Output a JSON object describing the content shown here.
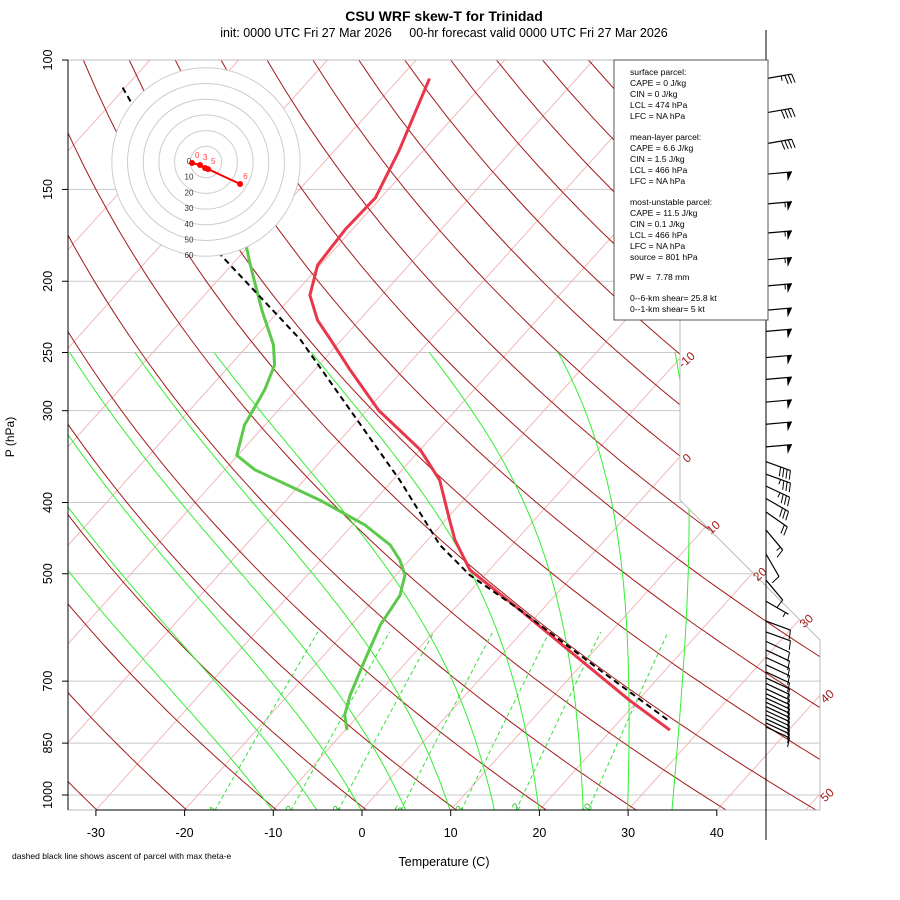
{
  "chart_data": {
    "type": "line",
    "title": "CSU WRF skew-T for Trinidad",
    "subtitle": "init: 0000 UTC Fri 27 Mar 2026     00-hr forecast valid 0000 UTC Fri 27 Mar 2026",
    "xlabel": "Temperature (C)",
    "ylabel": "P (hPa)",
    "footnote": "dashed black line shows ascent of parcel with max theta-e",
    "ylim": [
      1050,
      100
    ],
    "xlim_at_bottom": [
      -33,
      52
    ],
    "pressure_ticks": [
      "100",
      "150",
      "200",
      "250",
      "300",
      "400",
      "500",
      "700",
      "850",
      "1000"
    ],
    "temperature_ticks": [
      "-30",
      "-20",
      "-10",
      "0",
      "10",
      "20",
      "30",
      "40"
    ],
    "isotherm_labels": [
      "-10",
      "0",
      "10",
      "20",
      "30",
      "40",
      "50"
    ],
    "mixing_ratio_labels": [
      "1",
      "2",
      "3",
      "5",
      "8",
      "12",
      "20"
    ],
    "colors": {
      "temperature": "#e8364a",
      "dewpoint": "#5cc94a",
      "parcel": "#000000",
      "dry_adiabat": "#a31a1a",
      "isotherm": "#f2b8b8",
      "moist_adiabat": "#33ee33",
      "mixing_ratio": "#33dd33",
      "hodograph": "#ff0000"
    },
    "series": [
      {
        "name": "temperature",
        "p": [
          106,
          133,
          154,
          170,
          190,
          209,
          226,
          240,
          264,
          300,
          339,
          373,
          423,
          450,
          494,
          560,
          655,
          743,
          816
        ],
        "T": [
          -66.6,
          -62.7,
          -60.6,
          -60.8,
          -60.3,
          -58.1,
          -54.7,
          -51.3,
          -46,
          -38.6,
          -30,
          -24.7,
          -19.5,
          -16.9,
          -12.2,
          -2.5,
          9.4,
          19,
          26.6
        ]
      },
      {
        "name": "dewpoint",
        "p": [
          175,
          190,
          219,
          244,
          260,
          281,
          314,
          345,
          361,
          397,
          429,
          457,
          479,
          502,
          535,
          587,
          655,
          731,
          778,
          816
        ],
        "T": [
          -71.2,
          -67.9,
          -62,
          -57.2,
          -55,
          -53.6,
          -52.3,
          -50.1,
          -46.6,
          -36.2,
          -28.6,
          -23.7,
          -21.1,
          -19,
          -17.5,
          -16.7,
          -14.9,
          -13,
          -11.6,
          -9.8
        ]
      },
      {
        "name": "parcel",
        "p": [
          109,
          181,
          240,
          373,
          457,
          502,
          560,
          676,
          793
        ],
        "T": [
          -100.3,
          -73.4,
          -54.7,
          -29.2,
          -18.1,
          -11.7,
          -2.5,
          12.6,
          25.6
        ]
      }
    ],
    "hodograph": {
      "ring_labels": [
        "0",
        "10",
        "20",
        "30",
        "40",
        "50",
        "60"
      ],
      "points_kt": [
        {
          "u": -8.9,
          "v": -0.6,
          "label": "0"
        },
        {
          "u": -3.8,
          "v": -1.9,
          "label": "3"
        },
        {
          "u": -0.6,
          "v": -3.8,
          "label": ""
        },
        {
          "u": 1.3,
          "v": -4.5,
          "label": "5"
        },
        {
          "u": 21.7,
          "v": -14,
          "label": "6"
        }
      ]
    },
    "wind_barbs": [
      {
        "p": 106,
        "dir": 260,
        "spd": 35
      },
      {
        "p": 118,
        "dir": 260,
        "spd": 40
      },
      {
        "p": 130,
        "dir": 260,
        "spd": 40
      },
      {
        "p": 143,
        "dir": 265,
        "spd": 50
      },
      {
        "p": 157,
        "dir": 265,
        "spd": 55
      },
      {
        "p": 172,
        "dir": 265,
        "spd": 55
      },
      {
        "p": 187,
        "dir": 265,
        "spd": 55
      },
      {
        "p": 203,
        "dir": 265,
        "spd": 55
      },
      {
        "p": 219,
        "dir": 265,
        "spd": 50
      },
      {
        "p": 234,
        "dir": 265,
        "spd": 50
      },
      {
        "p": 254,
        "dir": 265,
        "spd": 50
      },
      {
        "p": 272,
        "dir": 265,
        "spd": 50
      },
      {
        "p": 292,
        "dir": 265,
        "spd": 50
      },
      {
        "p": 313,
        "dir": 265,
        "spd": 50
      },
      {
        "p": 336,
        "dir": 265,
        "spd": 50
      },
      {
        "p": 352,
        "dir": 290,
        "spd": 40
      },
      {
        "p": 366,
        "dir": 290,
        "spd": 35
      },
      {
        "p": 380,
        "dir": 295,
        "spd": 35
      },
      {
        "p": 395,
        "dir": 300,
        "spd": 30
      },
      {
        "p": 412,
        "dir": 305,
        "spd": 20
      },
      {
        "p": 436,
        "dir": 320,
        "spd": 15
      },
      {
        "p": 470,
        "dir": 330,
        "spd": 10
      },
      {
        "p": 510,
        "dir": 320,
        "spd": 10
      },
      {
        "p": 545,
        "dir": 300,
        "spd": 5
      },
      {
        "p": 580,
        "dir": 290,
        "spd": 10
      },
      {
        "p": 600,
        "dir": 290,
        "spd": 10
      },
      {
        "p": 618,
        "dir": 295,
        "spd": 10
      },
      {
        "p": 635,
        "dir": 295,
        "spd": 10
      },
      {
        "p": 650,
        "dir": 295,
        "spd": 10
      },
      {
        "p": 665,
        "dir": 295,
        "spd": 10
      },
      {
        "p": 680,
        "dir": 295,
        "spd": 10
      },
      {
        "p": 693,
        "dir": 295,
        "spd": 10
      },
      {
        "p": 705,
        "dir": 295,
        "spd": 10
      },
      {
        "p": 717,
        "dir": 295,
        "spd": 10
      },
      {
        "p": 728,
        "dir": 295,
        "spd": 10
      },
      {
        "p": 738,
        "dir": 295,
        "spd": 10
      },
      {
        "p": 748,
        "dir": 295,
        "spd": 10
      },
      {
        "p": 758,
        "dir": 295,
        "spd": 10
      },
      {
        "p": 768,
        "dir": 295,
        "spd": 10
      },
      {
        "p": 778,
        "dir": 295,
        "spd": 10
      },
      {
        "p": 788,
        "dir": 295,
        "spd": 10
      },
      {
        "p": 798,
        "dir": 295,
        "spd": 10
      },
      {
        "p": 808,
        "dir": 295,
        "spd": 10
      }
    ]
  },
  "stats": {
    "surface_header": "surface parcel:",
    "surface": [
      "CAPE = 0 J/kg",
      "CIN = 0 J/kg",
      "LCL = 474 hPa",
      "LFC = NA hPa"
    ],
    "mean_layer_header": "mean-layer parcel:",
    "mean_layer": [
      "CAPE = 6.6 J/kg",
      "CIN = 1.5 J/kg",
      "LCL = 466 hPa",
      "LFC = NA hPa"
    ],
    "most_unstable_header": "most-unstable parcel:",
    "most_unstable": [
      "CAPE = 11.5 J/kg",
      "CIN = 0.1 J/kg",
      "LCL = 466 hPa",
      "LFC = NA hPa",
      "source = 801 hPa"
    ],
    "pw": "PW =  7.78 mm",
    "shear": [
      "0--6-km shear= 25.8 kt",
      "0--1-km shear= 5 kt"
    ]
  }
}
